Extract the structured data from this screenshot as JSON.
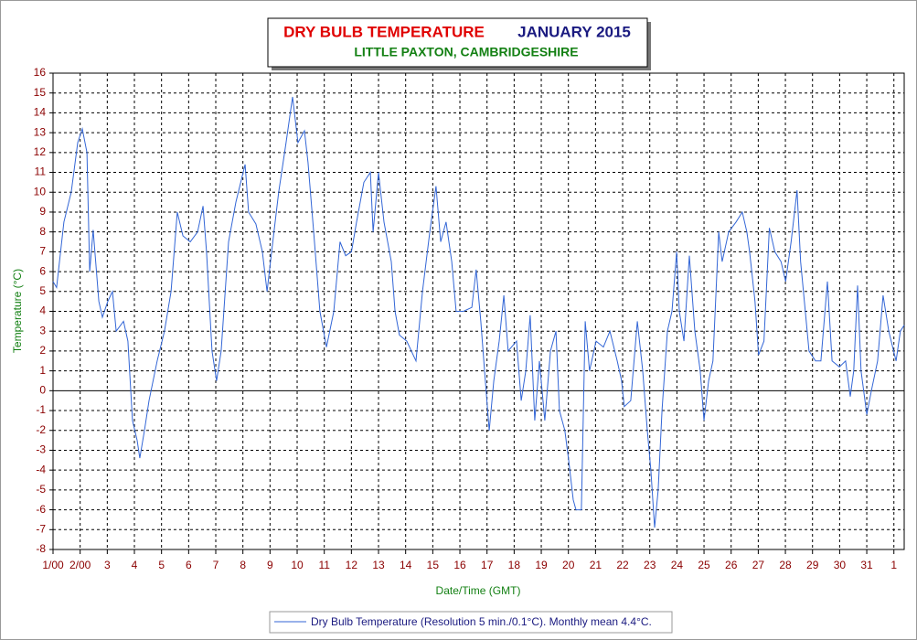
{
  "chart_data": {
    "type": "line",
    "title": "DRY BULB TEMPERATURE",
    "title_date": "JANUARY 2015",
    "subtitle": "LITTLE PAXTON, CAMBRIDGESHIRE",
    "xlabel": "Date/Time (GMT)",
    "ylabel": "Temperature (°C)",
    "grid": true,
    "legend": "bottom",
    "xlim": [
      0,
      31.38
    ],
    "ylim": [
      -8,
      16
    ],
    "yticks": [
      -8,
      -7,
      -6,
      -5,
      -4,
      -3,
      -2,
      -1,
      0,
      1,
      2,
      3,
      4,
      5,
      6,
      7,
      8,
      9,
      10,
      11,
      12,
      13,
      14,
      15,
      16
    ],
    "xticks": [
      {
        "value": 0,
        "label": "1/00"
      },
      {
        "value": 1,
        "label": "2/00"
      },
      {
        "value": 2,
        "label": "3"
      },
      {
        "value": 3,
        "label": "4"
      },
      {
        "value": 4,
        "label": "5"
      },
      {
        "value": 5,
        "label": "6"
      },
      {
        "value": 6,
        "label": "7"
      },
      {
        "value": 7,
        "label": "8"
      },
      {
        "value": 8,
        "label": "9"
      },
      {
        "value": 9,
        "label": "10"
      },
      {
        "value": 10,
        "label": "11"
      },
      {
        "value": 11,
        "label": "12"
      },
      {
        "value": 12,
        "label": "13"
      },
      {
        "value": 13,
        "label": "14"
      },
      {
        "value": 14,
        "label": "15"
      },
      {
        "value": 15,
        "label": "16"
      },
      {
        "value": 16,
        "label": "17"
      },
      {
        "value": 17,
        "label": "18"
      },
      {
        "value": 18,
        "label": "19"
      },
      {
        "value": 19,
        "label": "20"
      },
      {
        "value": 20,
        "label": "21"
      },
      {
        "value": 21,
        "label": "22"
      },
      {
        "value": 22,
        "label": "23"
      },
      {
        "value": 23,
        "label": "24"
      },
      {
        "value": 24,
        "label": "25"
      },
      {
        "value": 25,
        "label": "26"
      },
      {
        "value": 26,
        "label": "27"
      },
      {
        "value": 27,
        "label": "28"
      },
      {
        "value": 28,
        "label": "29"
      },
      {
        "value": 29,
        "label": "30"
      },
      {
        "value": 30,
        "label": "31"
      },
      {
        "value": 31,
        "label": "1"
      }
    ],
    "x": [
      0,
      0.13,
      0.4,
      0.67,
      0.91,
      1.08,
      1.25,
      1.35,
      1.48,
      1.69,
      1.82,
      2.02,
      2.19,
      2.33,
      2.6,
      2.76,
      2.93,
      3.1,
      3.2,
      3.37,
      3.54,
      3.84,
      4.11,
      4.35,
      4.58,
      4.79,
      5.06,
      5.33,
      5.53,
      5.66,
      5.86,
      6.03,
      6.2,
      6.47,
      6.74,
      7.08,
      7.21,
      7.48,
      7.72,
      7.89,
      8.06,
      8.32,
      8.59,
      8.83,
      9.03,
      9.27,
      9.4,
      9.61,
      9.84,
      10.08,
      10.35,
      10.58,
      10.79,
      11.0,
      11.19,
      11.46,
      11.7,
      11.8,
      12.0,
      12.2,
      12.47,
      12.61,
      12.77,
      13.04,
      13.38,
      13.62,
      13.89,
      14.12,
      14.29,
      14.49,
      14.7,
      14.86,
      15.13,
      15.44,
      15.6,
      15.77,
      15.91,
      16.08,
      16.25,
      16.45,
      16.62,
      16.78,
      17.09,
      17.26,
      17.43,
      17.59,
      17.76,
      17.93,
      18.13,
      18.34,
      18.54,
      18.67,
      18.87,
      19.01,
      19.18,
      19.28,
      19.48,
      19.62,
      19.78,
      20.02,
      20.29,
      20.53,
      20.8,
      20.96,
      21.06,
      21.3,
      21.54,
      21.74,
      21.91,
      22.04,
      22.18,
      22.31,
      22.45,
      22.65,
      22.82,
      22.99,
      23.09,
      23.26,
      23.46,
      23.66,
      23.86,
      24.0,
      24.17,
      24.33,
      24.54,
      24.67,
      24.91,
      25.18,
      25.41,
      25.58,
      25.68,
      25.88,
      26.01,
      26.21,
      26.41,
      26.61,
      26.84,
      27.01,
      27.21,
      27.43,
      27.56,
      27.7,
      27.87,
      28.11,
      28.31,
      28.55,
      28.72,
      28.99,
      29.22,
      29.39,
      29.52,
      29.66,
      29.79,
      30.0,
      30.17,
      30.4,
      30.6,
      30.81,
      31.08,
      31.24,
      31.38
    ],
    "series": [
      {
        "name": "Dry Bulb Temperature (Resolution 5 min./0.1°C). Monthly mean 4.4°C.",
        "color": "#3366d6",
        "values": [
          5.5,
          5.2,
          8.5,
          10,
          12.5,
          13.2,
          12,
          6,
          8.1,
          4.5,
          3.7,
          4.5,
          5.0,
          3.0,
          3.5,
          2.5,
          -1.5,
          -2.5,
          -3.4,
          -2.0,
          -0.5,
          1.5,
          3.0,
          5.0,
          9.0,
          7.8,
          7.5,
          8.0,
          9.3,
          7.0,
          2.0,
          0.5,
          2.0,
          7.5,
          9.5,
          11.4,
          9.0,
          8.4,
          7.0,
          5.0,
          7.0,
          10,
          12.5,
          14.8,
          12.5,
          13.1,
          11.5,
          8.0,
          4.0,
          2.2,
          4.0,
          7.5,
          6.8,
          7.0,
          8.5,
          10.5,
          11.0,
          8.0,
          11.0,
          8.5,
          6.5,
          4.0,
          2.8,
          2.5,
          1.5,
          5.0,
          8.0,
          10.3,
          7.5,
          8.5,
          6.5,
          4.0,
          4.0,
          4.2,
          6.1,
          3.5,
          1.0,
          -2.0,
          0.5,
          2.5,
          4.8,
          2.0,
          2.5,
          -0.5,
          1.0,
          3.8,
          -1.5,
          1.5,
          -1.5,
          2.0,
          3.0,
          -1.0,
          -2.0,
          -3.5,
          -5.5,
          -6.0,
          -6.0,
          3.5,
          1.0,
          2.5,
          2.2,
          3.0,
          1.5,
          0.5,
          -0.8,
          -0.5,
          3.5,
          1.0,
          -2.0,
          -4.0,
          -6.9,
          -5.0,
          -1.0,
          3.0,
          4.0,
          7.0,
          4.0,
          2.5,
          6.8,
          3.0,
          1.0,
          -1.5,
          0.5,
          1.5,
          8.0,
          6.5,
          8.0,
          8.5,
          9.0,
          8.0,
          7.0,
          4.5,
          1.8,
          2.5,
          8.2,
          7.0,
          6.5,
          5.5,
          7.5,
          10.1,
          6.5,
          4.5,
          2.0,
          1.5,
          1.5,
          5.5,
          1.5,
          1.2,
          1.5,
          -0.3,
          1.0,
          5.3,
          1.0,
          -1.2,
          0.0,
          1.5,
          4.8,
          3.0,
          1.5,
          3.0,
          3.3
        ]
      }
    ]
  }
}
